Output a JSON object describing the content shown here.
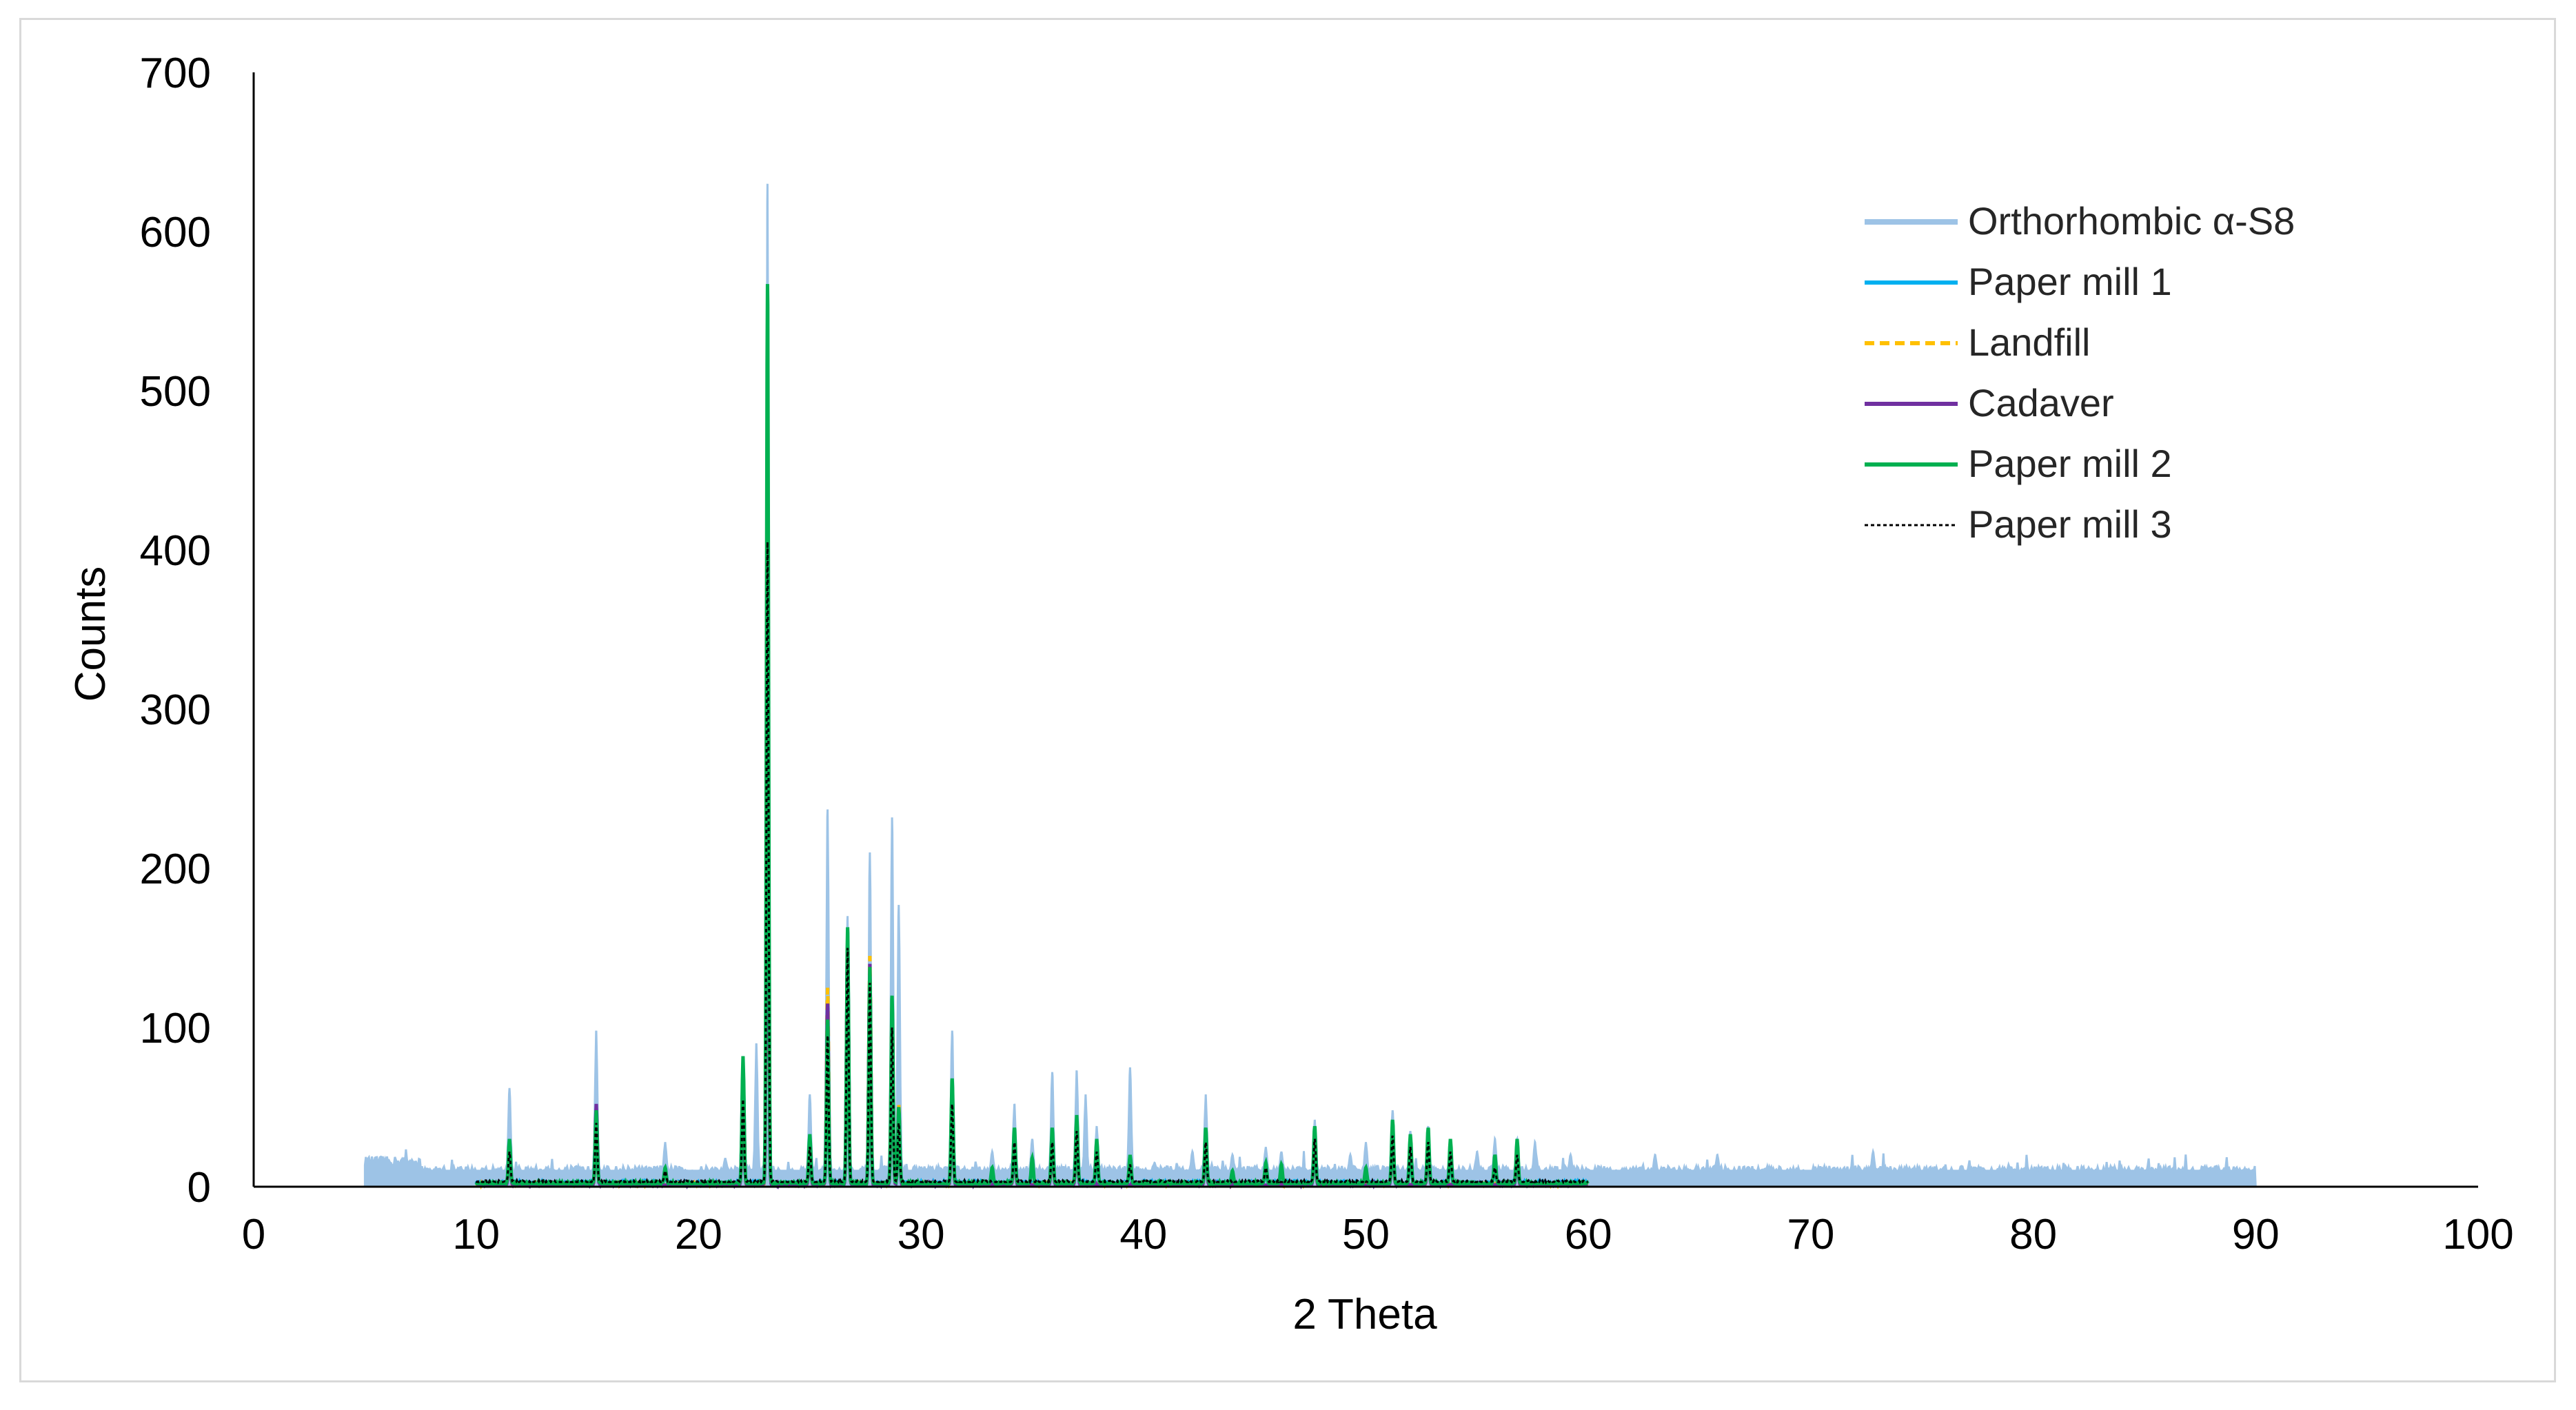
{
  "chart_data": {
    "type": "line",
    "title": "",
    "xlabel": "2 Theta",
    "ylabel": "Counts",
    "xlim": [
      0,
      100
    ],
    "ylim": [
      0,
      700
    ],
    "x_ticks": [
      0,
      10,
      20,
      30,
      40,
      50,
      60,
      70,
      80,
      90,
      100
    ],
    "y_ticks": [
      0,
      100,
      200,
      300,
      400,
      500,
      600,
      700
    ],
    "grid": false,
    "legend_position": "top-right",
    "series": [
      {
        "name": "Orthorhombic α-S8",
        "color": "#9dc3e6",
        "style": "solid-fill",
        "x_range": [
          5,
          90
        ],
        "baseline": 10,
        "peaks": [
          [
            11.5,
            62
          ],
          [
            15.4,
            98
          ],
          [
            18.5,
            28
          ],
          [
            21.2,
            18
          ],
          [
            22.0,
            82
          ],
          [
            22.6,
            90
          ],
          [
            23.1,
            630
          ],
          [
            25.0,
            58
          ],
          [
            25.8,
            237
          ],
          [
            26.7,
            170
          ],
          [
            27.7,
            210
          ],
          [
            28.7,
            232
          ],
          [
            29.0,
            177
          ],
          [
            31.4,
            98
          ],
          [
            33.2,
            22
          ],
          [
            34.2,
            52
          ],
          [
            35.0,
            30
          ],
          [
            35.9,
            72
          ],
          [
            37.0,
            73
          ],
          [
            37.4,
            58
          ],
          [
            37.9,
            38
          ],
          [
            39.4,
            75
          ],
          [
            40.5,
            15
          ],
          [
            42.2,
            22
          ],
          [
            42.8,
            58
          ],
          [
            44.0,
            20
          ],
          [
            45.5,
            25
          ],
          [
            46.2,
            22
          ],
          [
            47.7,
            42
          ],
          [
            49.3,
            20
          ],
          [
            50.0,
            28
          ],
          [
            51.2,
            48
          ],
          [
            52.0,
            35
          ],
          [
            52.8,
            38
          ],
          [
            53.8,
            30
          ],
          [
            55.0,
            22
          ],
          [
            55.8,
            30
          ],
          [
            56.8,
            30
          ],
          [
            57.6,
            28
          ],
          [
            59.2,
            20
          ],
          [
            63.0,
            20
          ],
          [
            65.8,
            20
          ],
          [
            72.8,
            22
          ]
        ]
      },
      {
        "name": "Paper mill 1",
        "color": "#00b0f0",
        "style": "solid",
        "x_range": [
          10,
          60
        ],
        "baseline": 2,
        "peaks": [
          [
            11.5,
            25
          ],
          [
            15.4,
            45
          ],
          [
            18.5,
            10
          ],
          [
            22.0,
            75
          ],
          [
            23.1,
            400
          ],
          [
            25.0,
            28
          ],
          [
            25.8,
            100
          ],
          [
            26.7,
            155
          ],
          [
            27.7,
            130
          ],
          [
            28.7,
            110
          ],
          [
            29.0,
            45
          ],
          [
            31.4,
            60
          ],
          [
            34.2,
            30
          ],
          [
            35.9,
            32
          ],
          [
            37.0,
            40
          ],
          [
            37.9,
            25
          ],
          [
            39.4,
            15
          ],
          [
            42.8,
            32
          ],
          [
            45.5,
            12
          ],
          [
            47.7,
            35
          ],
          [
            51.2,
            38
          ],
          [
            52.0,
            30
          ],
          [
            52.8,
            33
          ],
          [
            53.8,
            26
          ],
          [
            55.8,
            15
          ],
          [
            56.8,
            25
          ]
        ]
      },
      {
        "name": "Landfill",
        "color": "#ffc000",
        "style": "dashed",
        "x_range": [
          10,
          60
        ],
        "baseline": 1,
        "peaks": [
          [
            11.5,
            22
          ],
          [
            15.4,
            42
          ],
          [
            22.0,
            70
          ],
          [
            23.1,
            380
          ],
          [
            25.0,
            25
          ],
          [
            25.8,
            125
          ],
          [
            26.7,
            150
          ],
          [
            27.7,
            145
          ],
          [
            28.7,
            115
          ],
          [
            29.0,
            52
          ],
          [
            31.4,
            55
          ],
          [
            34.2,
            28
          ],
          [
            35.9,
            30
          ],
          [
            37.0,
            38
          ],
          [
            42.8,
            30
          ],
          [
            47.7,
            32
          ],
          [
            51.2,
            35
          ],
          [
            52.8,
            30
          ],
          [
            56.8,
            22
          ]
        ]
      },
      {
        "name": "Cadaver",
        "color": "#7030a0",
        "style": "solid",
        "x_range": [
          10,
          60
        ],
        "baseline": 1,
        "peaks": [
          [
            11.5,
            24
          ],
          [
            15.4,
            52
          ],
          [
            22.0,
            72
          ],
          [
            23.1,
            390
          ],
          [
            25.0,
            26
          ],
          [
            25.8,
            115
          ],
          [
            26.7,
            152
          ],
          [
            27.7,
            140
          ],
          [
            28.7,
            112
          ],
          [
            29.0,
            48
          ],
          [
            31.4,
            58
          ],
          [
            34.2,
            29
          ],
          [
            35.9,
            31
          ],
          [
            37.0,
            39
          ],
          [
            42.8,
            31
          ],
          [
            47.7,
            33
          ],
          [
            51.2,
            36
          ],
          [
            52.8,
            31
          ],
          [
            56.8,
            23
          ]
        ]
      },
      {
        "name": "Paper mill 2",
        "color": "#00b050",
        "style": "solid",
        "x_range": [
          10,
          60
        ],
        "baseline": 2,
        "peaks": [
          [
            11.5,
            30
          ],
          [
            15.4,
            48
          ],
          [
            18.5,
            12
          ],
          [
            22.0,
            82
          ],
          [
            23.1,
            567
          ],
          [
            25.0,
            33
          ],
          [
            25.8,
            105
          ],
          [
            26.7,
            163
          ],
          [
            27.7,
            138
          ],
          [
            28.7,
            120
          ],
          [
            29.0,
            50
          ],
          [
            31.4,
            68
          ],
          [
            33.2,
            12
          ],
          [
            34.2,
            37
          ],
          [
            35.0,
            18
          ],
          [
            35.9,
            37
          ],
          [
            37.0,
            45
          ],
          [
            37.9,
            30
          ],
          [
            39.4,
            20
          ],
          [
            42.8,
            37
          ],
          [
            44.0,
            10
          ],
          [
            45.5,
            15
          ],
          [
            46.2,
            14
          ],
          [
            47.7,
            38
          ],
          [
            50.0,
            12
          ],
          [
            51.2,
            42
          ],
          [
            52.0,
            33
          ],
          [
            52.8,
            37
          ],
          [
            53.8,
            30
          ],
          [
            55.8,
            20
          ],
          [
            56.8,
            30
          ]
        ]
      },
      {
        "name": "Paper mill 3",
        "color": "#000000",
        "style": "dotted",
        "x_range": [
          10,
          60
        ],
        "baseline": 3,
        "peaks": [
          [
            11.5,
            22
          ],
          [
            15.4,
            40
          ],
          [
            18.5,
            10
          ],
          [
            22.0,
            55
          ],
          [
            23.1,
            405
          ],
          [
            25.0,
            25
          ],
          [
            25.8,
            95
          ],
          [
            26.7,
            150
          ],
          [
            27.7,
            128
          ],
          [
            28.7,
            100
          ],
          [
            29.0,
            40
          ],
          [
            31.4,
            52
          ],
          [
            34.2,
            28
          ],
          [
            35.9,
            28
          ],
          [
            37.0,
            35
          ],
          [
            37.9,
            22
          ],
          [
            39.4,
            14
          ],
          [
            42.8,
            28
          ],
          [
            45.5,
            12
          ],
          [
            47.7,
            30
          ],
          [
            51.2,
            32
          ],
          [
            52.0,
            25
          ],
          [
            52.8,
            28
          ],
          [
            53.8,
            22
          ],
          [
            55.8,
            12
          ],
          [
            56.8,
            20
          ]
        ]
      }
    ]
  }
}
